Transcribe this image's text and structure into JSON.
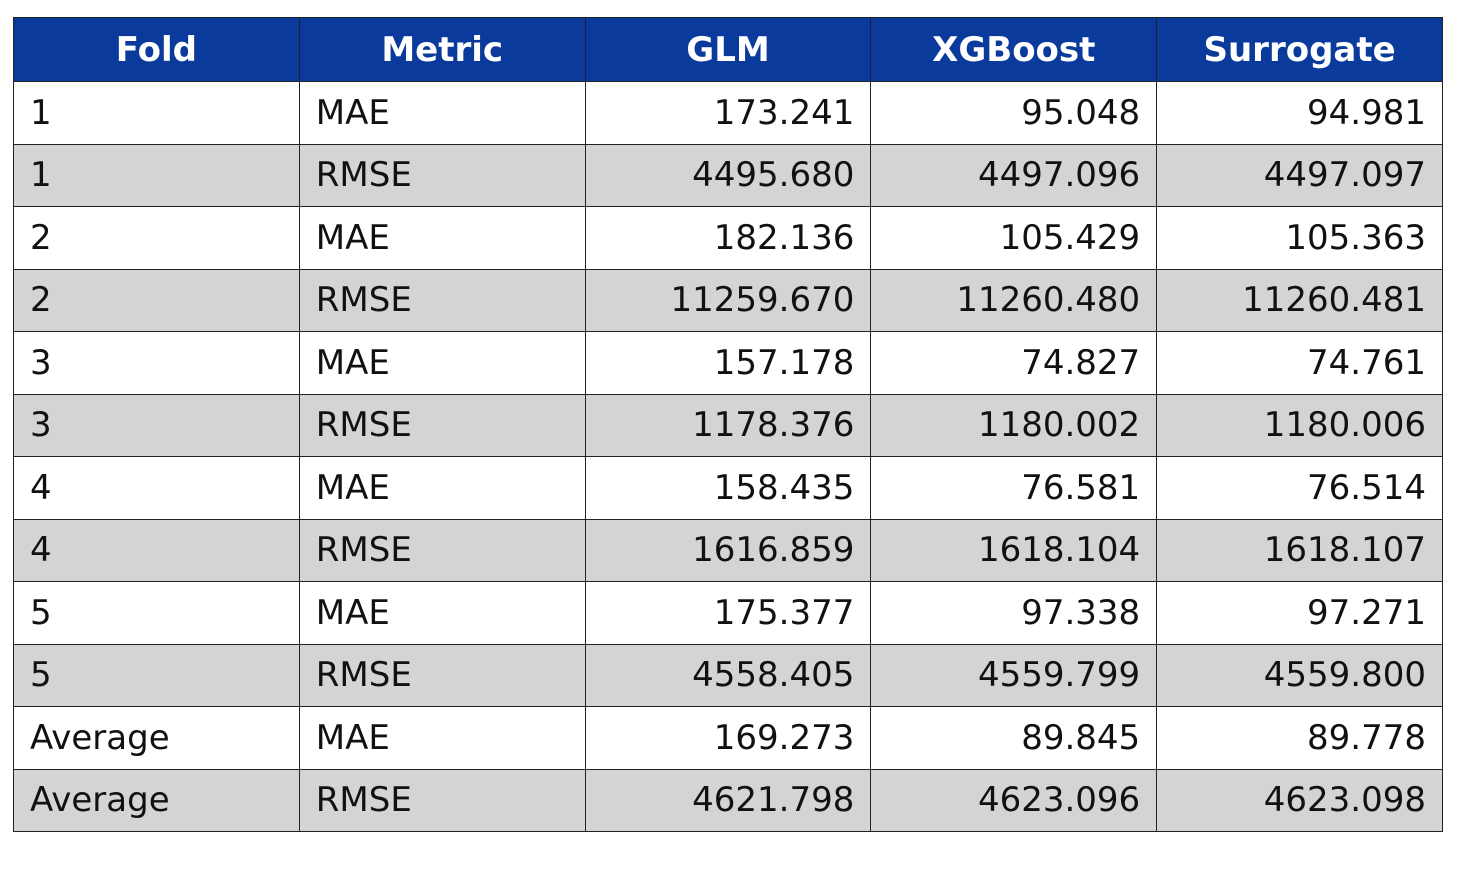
{
  "table": {
    "columns": [
      "Fold",
      "Metric",
      "GLM",
      "XGBoost",
      "Surrogate"
    ],
    "rows": [
      [
        "1",
        "MAE",
        "173.241",
        "95.048",
        "94.981"
      ],
      [
        "1",
        "RMSE",
        "4495.680",
        "4497.096",
        "4497.097"
      ],
      [
        "2",
        "MAE",
        "182.136",
        "105.429",
        "105.363"
      ],
      [
        "2",
        "RMSE",
        "11259.670",
        "11260.480",
        "11260.481"
      ],
      [
        "3",
        "MAE",
        "157.178",
        "74.827",
        "74.761"
      ],
      [
        "3",
        "RMSE",
        "1178.376",
        "1180.002",
        "1180.006"
      ],
      [
        "4",
        "MAE",
        "158.435",
        "76.581",
        "76.514"
      ],
      [
        "4",
        "RMSE",
        "1616.859",
        "1618.104",
        "1618.107"
      ],
      [
        "5",
        "MAE",
        "175.377",
        "97.338",
        "97.271"
      ],
      [
        "5",
        "RMSE",
        "4558.405",
        "4559.799",
        "4559.800"
      ],
      [
        "Average",
        "MAE",
        "169.273",
        "89.845",
        "89.778"
      ],
      [
        "Average",
        "RMSE",
        "4621.798",
        "4623.096",
        "4623.098"
      ]
    ]
  }
}
